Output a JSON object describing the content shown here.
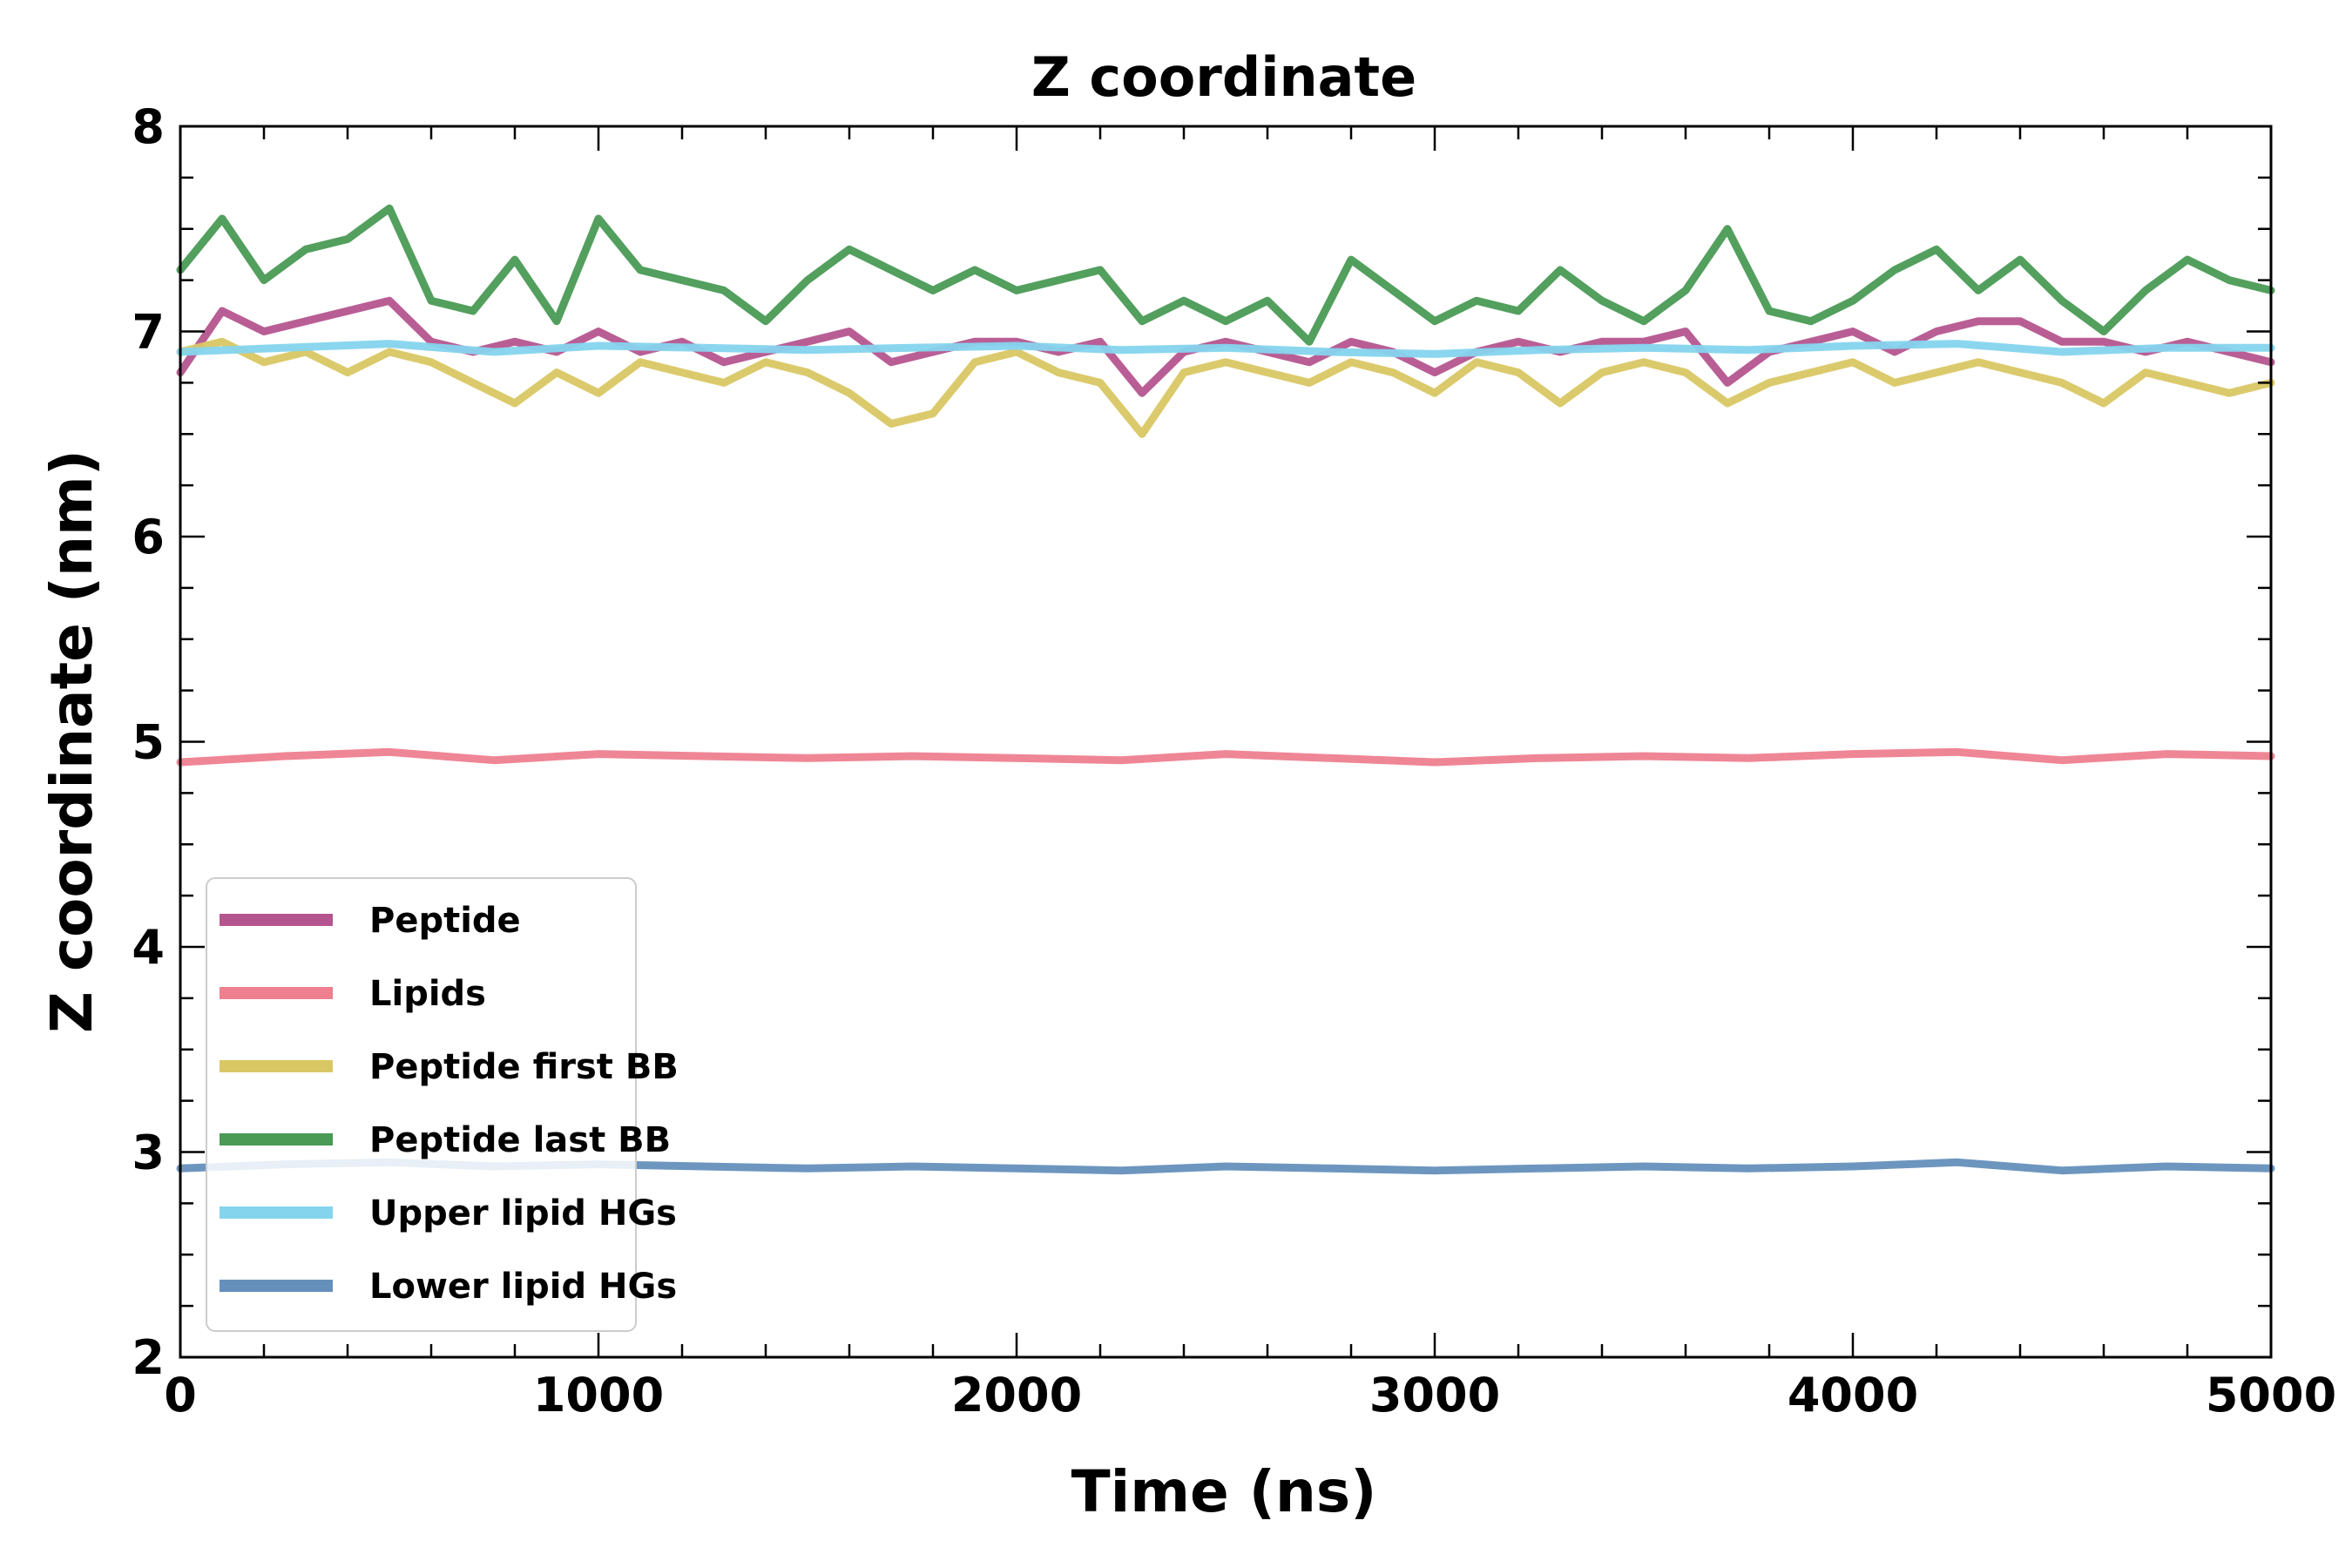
{
  "chart_data": {
    "type": "line",
    "title": "Z coordinate",
    "xlabel": "Time (ns)",
    "ylabel": "Z coordinate (nm)",
    "xlim": [
      0,
      5000
    ],
    "ylim": [
      2,
      8
    ],
    "xticks": [
      "0",
      "1000",
      "2000",
      "3000",
      "4000",
      "5000"
    ],
    "yticks": [
      "2",
      "3",
      "4",
      "5",
      "6",
      "7",
      "8"
    ],
    "grid": false,
    "legend_position": "lower-left",
    "series": [
      {
        "name": "Peptide",
        "color": "#b5558f",
        "x": [
          0,
          100,
          200,
          300,
          400,
          500,
          600,
          700,
          800,
          900,
          1000,
          1100,
          1200,
          1300,
          1400,
          1500,
          1600,
          1700,
          1800,
          1900,
          2000,
          2100,
          2200,
          2300,
          2400,
          2500,
          2600,
          2700,
          2800,
          2900,
          3000,
          3100,
          3200,
          3300,
          3400,
          3500,
          3600,
          3700,
          3800,
          3900,
          4000,
          4100,
          4200,
          4300,
          4400,
          4500,
          4600,
          4700,
          4800,
          4900,
          5000
        ],
        "y": [
          6.8,
          7.1,
          7.0,
          7.05,
          7.1,
          7.15,
          6.95,
          6.9,
          6.95,
          6.9,
          7.0,
          6.9,
          6.95,
          6.85,
          6.9,
          6.95,
          7.0,
          6.85,
          6.9,
          6.95,
          6.95,
          6.9,
          6.95,
          6.7,
          6.9,
          6.95,
          6.9,
          6.85,
          6.95,
          6.9,
          6.8,
          6.9,
          6.95,
          6.9,
          6.95,
          6.95,
          7.0,
          6.75,
          6.9,
          6.95,
          7.0,
          6.9,
          7.0,
          7.05,
          7.05,
          6.95,
          6.95,
          6.9,
          6.95,
          6.9,
          6.85
        ]
      },
      {
        "name": "Lipids",
        "color": "#ee7f8f",
        "x": [
          0,
          250,
          500,
          750,
          1000,
          1250,
          1500,
          1750,
          2000,
          2250,
          2500,
          2750,
          3000,
          3250,
          3500,
          3750,
          4000,
          4250,
          4500,
          4750,
          5000
        ],
        "y": [
          4.9,
          4.93,
          4.95,
          4.91,
          4.94,
          4.93,
          4.92,
          4.93,
          4.92,
          4.91,
          4.94,
          4.92,
          4.9,
          4.92,
          4.93,
          4.92,
          4.94,
          4.95,
          4.91,
          4.94,
          4.93
        ]
      },
      {
        "name": "Peptide first BB",
        "color": "#d9c764",
        "x": [
          0,
          100,
          200,
          300,
          400,
          500,
          600,
          700,
          800,
          900,
          1000,
          1100,
          1200,
          1300,
          1400,
          1500,
          1600,
          1700,
          1800,
          1900,
          2000,
          2100,
          2200,
          2300,
          2400,
          2500,
          2600,
          2700,
          2800,
          2900,
          3000,
          3100,
          3200,
          3300,
          3400,
          3500,
          3600,
          3700,
          3800,
          3900,
          4000,
          4100,
          4200,
          4300,
          4400,
          4500,
          4600,
          4700,
          4800,
          4900,
          5000
        ],
        "y": [
          6.9,
          6.95,
          6.85,
          6.9,
          6.8,
          6.9,
          6.85,
          6.75,
          6.65,
          6.8,
          6.7,
          6.85,
          6.8,
          6.75,
          6.85,
          6.8,
          6.7,
          6.55,
          6.6,
          6.85,
          6.9,
          6.8,
          6.75,
          6.5,
          6.8,
          6.85,
          6.8,
          6.75,
          6.85,
          6.8,
          6.7,
          6.85,
          6.8,
          6.65,
          6.8,
          6.85,
          6.8,
          6.65,
          6.75,
          6.8,
          6.85,
          6.75,
          6.8,
          6.85,
          6.8,
          6.75,
          6.65,
          6.8,
          6.75,
          6.7,
          6.75
        ]
      },
      {
        "name": "Peptide last BB",
        "color": "#4a9a55",
        "x": [
          0,
          100,
          200,
          300,
          400,
          500,
          600,
          700,
          800,
          900,
          1000,
          1100,
          1200,
          1300,
          1400,
          1500,
          1600,
          1700,
          1800,
          1900,
          2000,
          2100,
          2200,
          2300,
          2400,
          2500,
          2600,
          2700,
          2800,
          2900,
          3000,
          3100,
          3200,
          3300,
          3400,
          3500,
          3600,
          3700,
          3800,
          3900,
          4000,
          4100,
          4200,
          4300,
          4400,
          4500,
          4600,
          4700,
          4800,
          4900,
          5000
        ],
        "y": [
          7.3,
          7.55,
          7.25,
          7.4,
          7.45,
          7.6,
          7.15,
          7.1,
          7.35,
          7.05,
          7.55,
          7.3,
          7.25,
          7.2,
          7.05,
          7.25,
          7.4,
          7.3,
          7.2,
          7.3,
          7.2,
          7.25,
          7.3,
          7.05,
          7.15,
          7.05,
          7.15,
          6.95,
          7.35,
          7.2,
          7.05,
          7.15,
          7.1,
          7.3,
          7.15,
          7.05,
          7.2,
          7.5,
          7.1,
          7.05,
          7.15,
          7.3,
          7.4,
          7.2,
          7.35,
          7.15,
          7.0,
          7.2,
          7.35,
          7.25,
          7.2
        ]
      },
      {
        "name": "Upper lipid HGs",
        "color": "#85d4ee",
        "x": [
          0,
          250,
          500,
          750,
          1000,
          1250,
          1500,
          1750,
          2000,
          2250,
          2500,
          2750,
          3000,
          3250,
          3500,
          3750,
          4000,
          4250,
          4500,
          4750,
          5000
        ],
        "y": [
          6.9,
          6.92,
          6.94,
          6.9,
          6.93,
          6.92,
          6.91,
          6.92,
          6.93,
          6.91,
          6.92,
          6.9,
          6.89,
          6.91,
          6.92,
          6.91,
          6.93,
          6.94,
          6.9,
          6.92,
          6.92
        ]
      },
      {
        "name": "Lower lipid HGs",
        "color": "#6590bc",
        "x": [
          0,
          250,
          500,
          750,
          1000,
          1250,
          1500,
          1750,
          2000,
          2250,
          2500,
          2750,
          3000,
          3250,
          3500,
          3750,
          4000,
          4250,
          4500,
          4750,
          5000
        ],
        "y": [
          2.92,
          2.94,
          2.95,
          2.93,
          2.94,
          2.93,
          2.92,
          2.93,
          2.92,
          2.91,
          2.93,
          2.92,
          2.91,
          2.92,
          2.93,
          2.92,
          2.93,
          2.95,
          2.91,
          2.93,
          2.92
        ]
      }
    ]
  }
}
